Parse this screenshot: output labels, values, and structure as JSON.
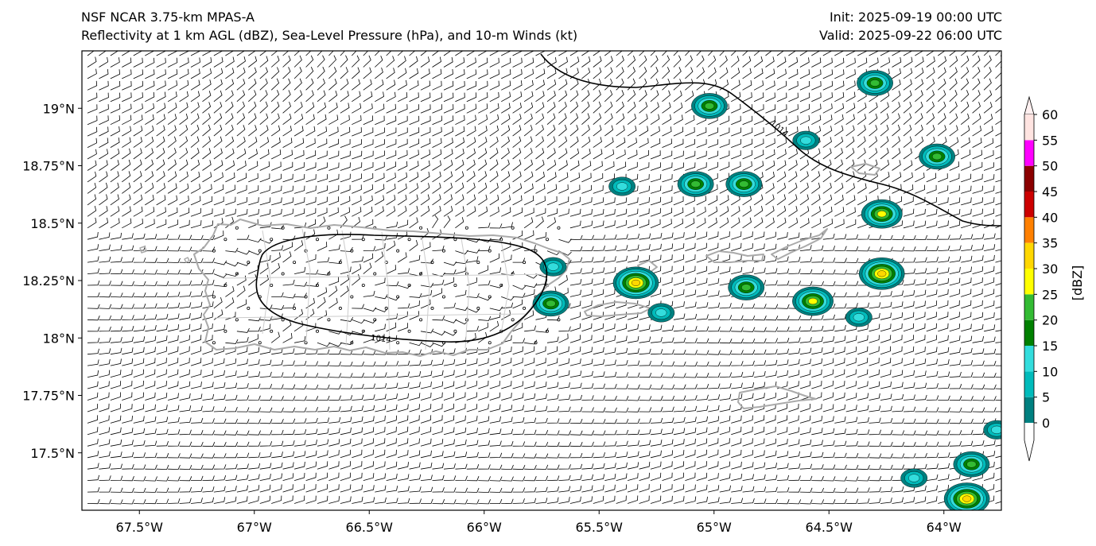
{
  "titles": {
    "left_line1": "NSF NCAR 3.75-km MPAS-A",
    "left_line2": "Reflectivity at 1 km AGL (dBZ), Sea-Level Pressure (hPa), and 10-m Winds (kt)",
    "right_line1": "Init: 2025-09-19 00:00 UTC",
    "right_line2": "Valid: 2025-09-22 06:00 UTC"
  },
  "map": {
    "lon_range": [
      -67.75,
      -63.75
    ],
    "lat_range": [
      17.25,
      19.25
    ],
    "lon_ticks": [
      {
        "value": -67.5,
        "label": "67.5°W"
      },
      {
        "value": -67.0,
        "label": "67°W"
      },
      {
        "value": -66.5,
        "label": "66.5°W"
      },
      {
        "value": -66.0,
        "label": "66°W"
      },
      {
        "value": -65.5,
        "label": "65.5°W"
      },
      {
        "value": -65.0,
        "label": "65°W"
      },
      {
        "value": -64.5,
        "label": "64.5°W"
      },
      {
        "value": -64.0,
        "label": "64°W"
      }
    ],
    "lat_ticks": [
      {
        "value": 19.0,
        "label": "19°N"
      },
      {
        "value": 18.75,
        "label": "18.75°N"
      },
      {
        "value": 18.5,
        "label": "18.5°N"
      },
      {
        "value": 18.25,
        "label": "18.25°N"
      },
      {
        "value": 18.0,
        "label": "18°N"
      },
      {
        "value": 17.75,
        "label": "17.75°N"
      },
      {
        "value": 17.5,
        "label": "17.5°N"
      }
    ],
    "isobar_label": "1014",
    "coast_color": "#aaaaaa",
    "isobar_color": "#000000"
  },
  "colorbar": {
    "label": "[dBZ]",
    "levels": [
      0,
      5,
      10,
      15,
      20,
      25,
      30,
      35,
      40,
      45,
      50,
      55,
      60
    ],
    "tick_labels": [
      "0",
      "5",
      "10",
      "15",
      "20",
      "25",
      "30",
      "35",
      "40",
      "45",
      "50",
      "55",
      "60"
    ],
    "colors": [
      "#008080",
      "#00bbbb",
      "#33dddd",
      "#008000",
      "#33bb33",
      "#ffff00",
      "#ffd700",
      "#ff8000",
      "#cc0000",
      "#8b0000",
      "#ff00ff",
      "#ffe4e1"
    ]
  },
  "chart_data": {
    "type": "map",
    "reflectivity_cells": [
      {
        "lon": -64.3,
        "lat": 19.11,
        "peak_dbz": 20
      },
      {
        "lon": -65.02,
        "lat": 19.01,
        "peak_dbz": 20
      },
      {
        "lon": -64.6,
        "lat": 18.86,
        "peak_dbz": 10
      },
      {
        "lon": -64.03,
        "lat": 18.79,
        "peak_dbz": 20
      },
      {
        "lon": -65.4,
        "lat": 18.66,
        "peak_dbz": 10
      },
      {
        "lon": -65.08,
        "lat": 18.67,
        "peak_dbz": 20
      },
      {
        "lon": -64.87,
        "lat": 18.67,
        "peak_dbz": 20
      },
      {
        "lon": -64.27,
        "lat": 18.54,
        "peak_dbz": 25
      },
      {
        "lon": -64.27,
        "lat": 18.28,
        "peak_dbz": 30
      },
      {
        "lon": -65.34,
        "lat": 18.24,
        "peak_dbz": 30
      },
      {
        "lon": -65.71,
        "lat": 18.15,
        "peak_dbz": 20
      },
      {
        "lon": -65.7,
        "lat": 18.31,
        "peak_dbz": 10
      },
      {
        "lon": -64.86,
        "lat": 18.22,
        "peak_dbz": 20
      },
      {
        "lon": -64.57,
        "lat": 18.16,
        "peak_dbz": 25
      },
      {
        "lon": -65.23,
        "lat": 18.11,
        "peak_dbz": 10
      },
      {
        "lon": -64.37,
        "lat": 18.09,
        "peak_dbz": 10
      },
      {
        "lon": -64.13,
        "lat": 17.39,
        "peak_dbz": 10
      },
      {
        "lon": -63.88,
        "lat": 17.45,
        "peak_dbz": 20
      },
      {
        "lon": -63.9,
        "lat": 17.3,
        "peak_dbz": 30
      },
      {
        "lon": -63.77,
        "lat": 17.6,
        "peak_dbz": 10
      }
    ],
    "wind_barbs": "10-m winds, easterly 5-15 kt over domain",
    "isobars": [
      {
        "value": 1014,
        "shape": "closed low over Puerto Rico"
      },
      {
        "value": 1014,
        "shape": "line across northeast corner"
      }
    ]
  }
}
